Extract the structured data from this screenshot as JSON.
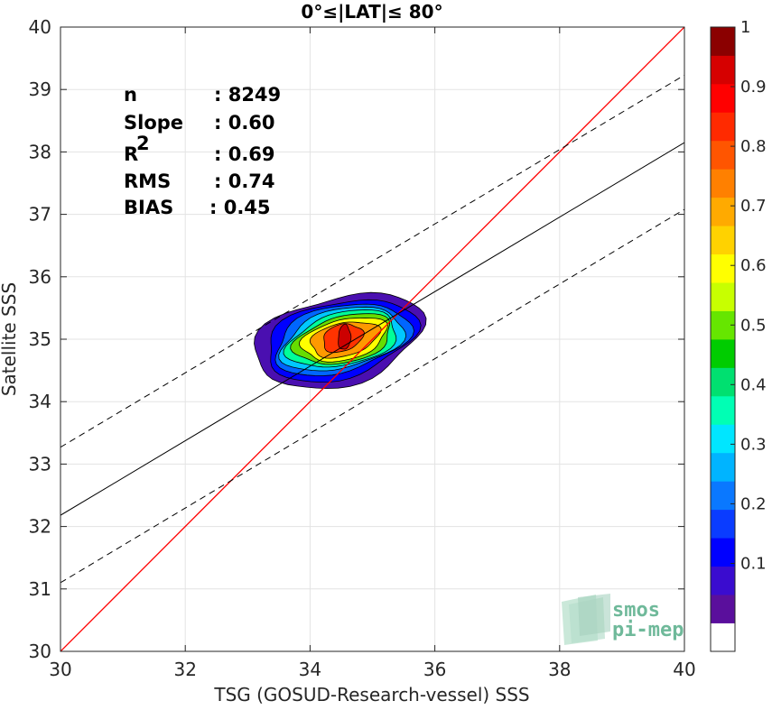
{
  "chart_data": {
    "type": "scatter",
    "title": "0°≤|LAT|≤ 80°",
    "xlabel": "TSG (GOSUD-Research-vessel) SSS",
    "ylabel": "Satellite SSS",
    "xlim": [
      30,
      40
    ],
    "ylim": [
      30,
      40
    ],
    "xticks": [
      "30",
      "32",
      "34",
      "36",
      "38",
      "40"
    ],
    "yticks": [
      "30",
      "31",
      "32",
      "33",
      "34",
      "35",
      "36",
      "37",
      "38",
      "39",
      "40"
    ],
    "grid": true,
    "stats": [
      {
        "key": "n",
        "value": ": 8249"
      },
      {
        "key": "Slope",
        "value": ": 0.60"
      },
      {
        "key": "R",
        "sup": "2",
        "value": ": 0.69"
      },
      {
        "key": "RMS",
        "value": ": 0.74"
      },
      {
        "key": "BIAS",
        "value": ": 0.45"
      }
    ],
    "identity_line": {
      "slope": 1,
      "intercept": 0,
      "color": "#ff0000"
    },
    "fit_line": {
      "x": [
        30,
        40
      ],
      "y": [
        32.18,
        38.15
      ]
    },
    "fit_band_upper": {
      "x": [
        30,
        40
      ],
      "y": [
        33.27,
        39.23
      ]
    },
    "fit_band_lower": {
      "x": [
        30,
        40
      ],
      "y": [
        31.1,
        37.08
      ]
    },
    "density_contours": {
      "center": [
        34.55,
        35.0
      ],
      "levels": [
        {
          "level": 0.05,
          "color": "#4a0fb0",
          "rx": 1.35,
          "ry": 0.72,
          "cx": 34.45,
          "cy": 34.98
        },
        {
          "level": 0.15,
          "color": "#0000ff",
          "rx": 1.2,
          "ry": 0.62,
          "cx": 34.48,
          "cy": 34.99
        },
        {
          "level": 0.25,
          "color": "#0066ff",
          "rx": 1.08,
          "ry": 0.54,
          "cx": 34.5,
          "cy": 35.0
        },
        {
          "level": 0.35,
          "color": "#00c8ff",
          "rx": 0.98,
          "ry": 0.48,
          "cx": 34.52,
          "cy": 35.0
        },
        {
          "level": 0.45,
          "color": "#00ff99",
          "rx": 0.88,
          "ry": 0.43,
          "cx": 34.53,
          "cy": 35.0
        },
        {
          "level": 0.55,
          "color": "#66dd00",
          "rx": 0.78,
          "ry": 0.38,
          "cx": 34.54,
          "cy": 35.0
        },
        {
          "level": 0.65,
          "color": "#ffff00",
          "rx": 0.68,
          "ry": 0.33,
          "cx": 34.55,
          "cy": 35.0
        },
        {
          "level": 0.75,
          "color": "#ff9900",
          "rx": 0.55,
          "ry": 0.27,
          "cx": 34.55,
          "cy": 35.0
        },
        {
          "level": 0.85,
          "color": "#ff3300",
          "rx": 0.32,
          "ry": 0.22,
          "cx": 34.52,
          "cy": 35.02
        },
        {
          "level": 0.95,
          "color": "#cc0000",
          "rx": 0.1,
          "ry": 0.2,
          "cx": 34.55,
          "cy": 35.03
        }
      ]
    },
    "colorbar": {
      "ticks": [
        "0.1",
        "0.2",
        "0.3",
        "0.4",
        "0.5",
        "0.6",
        "0.7",
        "0.8",
        "0.9",
        "1"
      ],
      "colors": [
        "#ffffff",
        "#5a0f9c",
        "#3a0ccf",
        "#0000ff",
        "#0a3cff",
        "#0a78ff",
        "#00b4ff",
        "#00e6ff",
        "#00ffb4",
        "#00e070",
        "#00cc00",
        "#66e600",
        "#c8ff00",
        "#ffff00",
        "#ffd200",
        "#ffaa00",
        "#ff8000",
        "#ff5500",
        "#ff2a00",
        "#ff0000",
        "#d60000",
        "#8b0000"
      ]
    },
    "logo": {
      "line1": "smos",
      "line2": "pi-mep"
    }
  }
}
